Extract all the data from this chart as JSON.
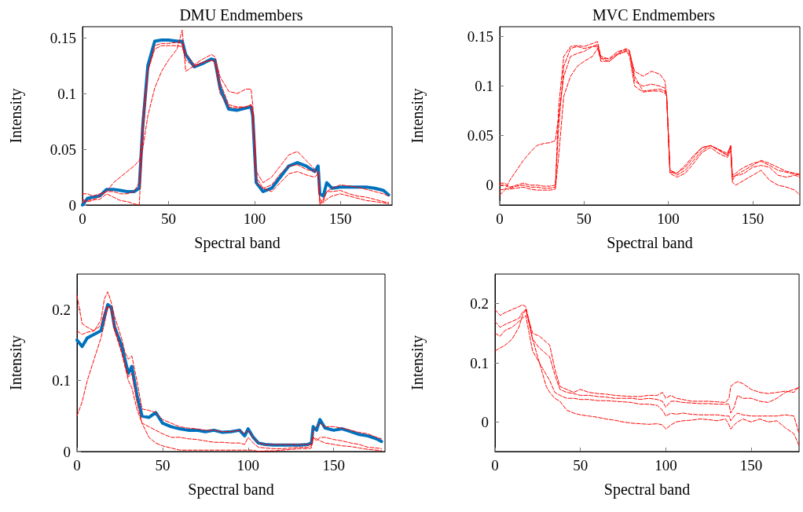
{
  "chart_data": [
    {
      "type": "line",
      "title": "DMU Endmembers",
      "xlabel": "Spectral band",
      "ylabel": "Intensity",
      "xlim": [
        0,
        180
      ],
      "xticks": [
        0,
        50,
        100,
        150
      ],
      "ylim": [
        0,
        0.16
      ],
      "yticks": [
        0,
        0.05,
        0.1,
        0.15
      ],
      "grid": false,
      "marker": "none",
      "x": [
        0,
        3,
        6,
        10,
        14,
        18,
        22,
        26,
        30,
        33,
        35,
        38,
        42,
        46,
        50,
        55,
        58,
        60,
        65,
        70,
        75,
        77,
        80,
        85,
        90,
        95,
        98,
        99,
        101,
        105,
        110,
        115,
        120,
        125,
        130,
        135,
        137,
        138,
        140,
        142,
        145,
        150,
        155,
        160,
        165,
        170,
        175,
        178
      ],
      "series": [
        {
          "color": "#ff0000",
          "line_style": "dashed",
          "values": [
            0.01,
            0.01,
            0.008,
            0.01,
            0.012,
            0.012,
            0.01,
            0.01,
            0.012,
            0.02,
            0.08,
            0.12,
            0.143,
            0.145,
            0.145,
            0.146,
            0.145,
            0.136,
            0.126,
            0.131,
            0.135,
            0.133,
            0.115,
            0.102,
            0.1,
            0.104,
            0.104,
            0.09,
            0.03,
            0.02,
            0.025,
            0.035,
            0.045,
            0.048,
            0.04,
            0.032,
            0.03,
            0.005,
            0.003,
            0.012,
            0.015,
            0.018,
            0.017,
            0.016,
            0.014,
            0.012,
            0.01,
            0.008
          ]
        },
        {
          "color": "#ff0000",
          "line_style": "dashed",
          "values": [
            0.005,
            0.003,
            0.004,
            0.008,
            0.012,
            0.02,
            0.025,
            0.03,
            0.035,
            0.04,
            0.05,
            0.08,
            0.105,
            0.12,
            0.13,
            0.14,
            0.157,
            0.12,
            0.125,
            0.128,
            0.13,
            0.128,
            0.11,
            0.09,
            0.088,
            0.088,
            0.09,
            0.08,
            0.025,
            0.015,
            0.012,
            0.02,
            0.028,
            0.03,
            0.027,
            0.025,
            0.028,
            0.003,
            0.002,
            0.005,
            0.008,
            0.01,
            0.008,
            0.006,
            0.004,
            0.003,
            0.002,
            0.001
          ]
        },
        {
          "color": "#ff0000",
          "line_style": "dashed",
          "values": [
            0.002,
            0.004,
            0.005,
            0.005,
            0.01,
            0.007,
            0.004,
            0.003,
            0.001,
            0,
            0.06,
            0.12,
            0.14,
            0.143,
            0.143,
            0.143,
            0.142,
            0.13,
            0.124,
            0.128,
            0.13,
            0.128,
            0.1,
            0.088,
            0.087,
            0.088,
            0.09,
            0.08,
            0.02,
            0.015,
            0.018,
            0.028,
            0.035,
            0.036,
            0.032,
            0.03,
            0.028,
            0,
            0.005,
            0.012,
            0.012,
            0.013,
            0.01,
            0.008,
            0.007,
            0.005,
            0.003,
            0.002
          ]
        },
        {
          "color": "#0072bd",
          "line_style": "solid",
          "values": [
            0,
            0.006,
            0.007,
            0.008,
            0.014,
            0.014,
            0.013,
            0.012,
            0.012,
            0.015,
            0.07,
            0.125,
            0.147,
            0.148,
            0.148,
            0.147,
            0.147,
            0.135,
            0.124,
            0.127,
            0.131,
            0.13,
            0.105,
            0.086,
            0.085,
            0.087,
            0.088,
            0.08,
            0.02,
            0.012,
            0.015,
            0.025,
            0.035,
            0.038,
            0.035,
            0.03,
            0.035,
            0.01,
            0.008,
            0.02,
            0.015,
            0.016,
            0.016,
            0.016,
            0.016,
            0.015,
            0.013,
            0.009
          ]
        }
      ]
    },
    {
      "type": "line",
      "title": "MVC Endmembers",
      "xlabel": "Spectral band",
      "ylabel": "Intensity",
      "xlim": [
        0,
        178
      ],
      "xticks": [
        0,
        50,
        100,
        150
      ],
      "ylim": [
        -0.02,
        0.16
      ],
      "yticks": [
        0,
        0.05,
        0.1,
        0.15
      ],
      "grid": false,
      "marker": "none",
      "x": [
        0,
        3,
        6,
        10,
        14,
        18,
        22,
        26,
        30,
        33,
        35,
        38,
        42,
        46,
        50,
        55,
        58,
        60,
        65,
        70,
        75,
        77,
        80,
        85,
        90,
        95,
        98,
        99,
        101,
        105,
        110,
        115,
        120,
        125,
        130,
        135,
        137,
        138,
        140,
        142,
        145,
        150,
        155,
        160,
        165,
        170,
        175,
        178
      ],
      "series": [
        {
          "color": "#ff0000",
          "line_style": "dashed",
          "values": [
            -0.01,
            -0.005,
            0.005,
            0.015,
            0.025,
            0.033,
            0.04,
            0.042,
            0.043,
            0.045,
            0.07,
            0.11,
            0.13,
            0.133,
            0.135,
            0.14,
            0.14,
            0.125,
            0.125,
            0.132,
            0.135,
            0.133,
            0.115,
            0.11,
            0.115,
            0.112,
            0.105,
            0.09,
            0.015,
            0.012,
            0.018,
            0.028,
            0.038,
            0.04,
            0.035,
            0.03,
            0.038,
            0.01,
            0.012,
            0.015,
            0.018,
            0.022,
            0.024,
            0.02,
            0.015,
            0.013,
            0.011,
            0.01
          ]
        },
        {
          "color": "#ff0000",
          "line_style": "dashed",
          "values": [
            0.002,
            0.002,
            -0.002,
            0,
            0.002,
            0,
            0,
            -0.001,
            -0.001,
            0,
            0.06,
            0.12,
            0.138,
            0.14,
            0.138,
            0.14,
            0.142,
            0.128,
            0.128,
            0.135,
            0.137,
            0.135,
            0.105,
            0.1,
            0.102,
            0.1,
            0.098,
            0.09,
            0.015,
            0.01,
            0.015,
            0.025,
            0.035,
            0.04,
            0.036,
            0.032,
            0.04,
            0.008,
            0.01,
            0.012,
            0.015,
            0.02,
            0.025,
            0.022,
            0.018,
            0.014,
            0.012,
            0.011
          ]
        },
        {
          "color": "#ff0000",
          "line_style": "dashed",
          "values": [
            -0.005,
            -0.004,
            -0.004,
            -0.003,
            -0.002,
            -0.004,
            -0.005,
            -0.005,
            -0.005,
            -0.004,
            0.03,
            0.09,
            0.11,
            0.12,
            0.125,
            0.13,
            0.138,
            0.128,
            0.125,
            0.132,
            0.136,
            0.13,
            0.1,
            0.094,
            0.095,
            0.095,
            0.093,
            0.09,
            0.012,
            0.008,
            0.012,
            0.022,
            0.033,
            0.038,
            0.032,
            0.028,
            0.035,
            0.003,
            0,
            0.002,
            0.005,
            0.01,
            0.015,
            0.005,
            0,
            -0.002,
            -0.005,
            -0.01
          ]
        },
        {
          "color": "#ff0000",
          "line_style": "dashed",
          "values": [
            0,
            0,
            -0.003,
            -0.001,
            0,
            -0.002,
            -0.002,
            -0.003,
            -0.003,
            -0.002,
            0.08,
            0.13,
            0.14,
            0.141,
            0.14,
            0.143,
            0.145,
            0.13,
            0.127,
            0.133,
            0.138,
            0.136,
            0.11,
            0.095,
            0.096,
            0.097,
            0.095,
            0.09,
            0.013,
            0.012,
            0.02,
            0.03,
            0.038,
            0.04,
            0.036,
            0.03,
            0.04,
            0.005,
            0.01,
            0.01,
            0.012,
            0.018,
            0.02,
            0.018,
            0.01,
            0.008,
            0.01,
            0.008
          ]
        }
      ]
    },
    {
      "type": "line",
      "xlabel": "Spectral band",
      "ylabel": "Intensity",
      "xlim": [
        0,
        180
      ],
      "xticks": [
        0,
        50,
        100,
        150
      ],
      "ylim": [
        0,
        0.25
      ],
      "yticks": [
        0,
        0.1,
        0.2
      ],
      "grid": false,
      "marker": "none",
      "x": [
        0,
        3,
        6,
        10,
        14,
        16,
        18,
        20,
        22,
        26,
        28,
        30,
        32,
        35,
        38,
        42,
        46,
        50,
        55,
        60,
        65,
        70,
        75,
        80,
        85,
        90,
        95,
        98,
        100,
        103,
        106,
        110,
        115,
        120,
        125,
        130,
        135,
        137,
        138,
        140,
        142,
        145,
        150,
        155,
        160,
        165,
        170,
        175,
        178
      ],
      "series": [
        {
          "color": "#ff0000",
          "line_style": "dashed",
          "values": [
            0.22,
            0.18,
            0.175,
            0.17,
            0.185,
            0.215,
            0.225,
            0.21,
            0.19,
            0.16,
            0.14,
            0.13,
            0.135,
            0.1,
            0.06,
            0.058,
            0.055,
            0.045,
            0.04,
            0.035,
            0.033,
            0.032,
            0.03,
            0.03,
            0.028,
            0.028,
            0.03,
            0.025,
            0.03,
            0.02,
            0.012,
            0.01,
            0.01,
            0.01,
            0.01,
            0.01,
            0.01,
            0.01,
            0.03,
            0.035,
            0.04,
            0.035,
            0.035,
            0.033,
            0.03,
            0.027,
            0.025,
            0.02,
            0.018
          ]
        },
        {
          "color": "#ff0000",
          "line_style": "dashed",
          "values": [
            0.05,
            0.07,
            0.1,
            0.13,
            0.16,
            0.18,
            0.205,
            0.2,
            0.175,
            0.14,
            0.12,
            0.1,
            0.09,
            0.06,
            0.04,
            0.035,
            0.03,
            0.025,
            0.02,
            0.02,
            0.018,
            0.017,
            0.015,
            0.013,
            0.013,
            0.012,
            0.012,
            0.01,
            0.02,
            0.012,
            0.006,
            0.005,
            0.004,
            0.004,
            0.005,
            0.006,
            0.006,
            0.008,
            0.02,
            0.015,
            0.02,
            0.02,
            0.017,
            0.015,
            0.012,
            0.01,
            0.006,
            0.005,
            0.004
          ]
        },
        {
          "color": "#ff0000",
          "line_style": "dashed",
          "values": [
            0.17,
            0.165,
            0.168,
            0.17,
            0.178,
            0.195,
            0.205,
            0.2,
            0.17,
            0.14,
            0.125,
            0.105,
            0.11,
            0.07,
            0.04,
            0.02,
            0.012,
            0.008,
            0.005,
            0.002,
            0.002,
            0.002,
            0.002,
            0.002,
            0.002,
            0.002,
            0.002,
            0.002,
            0.002,
            0.002,
            0,
            0.001,
            0.001,
            0.002,
            0.003,
            0.004,
            0.004,
            0.005,
            0.02,
            0.018,
            0.015,
            0.012,
            0.01,
            0.008,
            0.007,
            0.005,
            0.003,
            0.002,
            0.001
          ]
        },
        {
          "color": "#0072bd",
          "line_style": "solid",
          "values": [
            0.157,
            0.148,
            0.16,
            0.165,
            0.17,
            0.19,
            0.207,
            0.203,
            0.175,
            0.15,
            0.13,
            0.11,
            0.12,
            0.08,
            0.05,
            0.048,
            0.055,
            0.04,
            0.035,
            0.032,
            0.03,
            0.03,
            0.028,
            0.03,
            0.027,
            0.028,
            0.03,
            0.022,
            0.032,
            0.02,
            0.012,
            0.01,
            0.009,
            0.009,
            0.009,
            0.009,
            0.01,
            0.012,
            0.035,
            0.03,
            0.045,
            0.033,
            0.03,
            0.032,
            0.028,
            0.024,
            0.022,
            0.018,
            0.014
          ]
        }
      ]
    },
    {
      "type": "line",
      "xlabel": "Spectral band",
      "ylabel": "Intensity",
      "xlim": [
        0,
        178
      ],
      "xticks": [
        0,
        50,
        100,
        150
      ],
      "ylim": [
        -0.05,
        0.25
      ],
      "yticks": [
        0,
        0.1,
        0.2
      ],
      "grid": false,
      "marker": "none",
      "x": [
        0,
        3,
        6,
        10,
        14,
        16,
        18,
        20,
        22,
        26,
        28,
        30,
        32,
        35,
        38,
        42,
        46,
        50,
        55,
        60,
        65,
        70,
        75,
        80,
        85,
        90,
        95,
        98,
        100,
        103,
        106,
        110,
        115,
        120,
        125,
        130,
        135,
        137,
        138,
        140,
        142,
        145,
        150,
        155,
        160,
        165,
        170,
        175,
        178
      ],
      "series": [
        {
          "color": "#ff0000",
          "line_style": "dashed",
          "values": [
            0.19,
            0.18,
            0.185,
            0.19,
            0.195,
            0.198,
            0.195,
            0.17,
            0.15,
            0.145,
            0.14,
            0.135,
            0.13,
            0.09,
            0.06,
            0.055,
            0.05,
            0.055,
            0.05,
            0.048,
            0.047,
            0.045,
            0.044,
            0.043,
            0.043,
            0.045,
            0.045,
            0.05,
            0.04,
            0.045,
            0.04,
            0.038,
            0.035,
            0.035,
            0.035,
            0.034,
            0.033,
            0.04,
            0.06,
            0.065,
            0.068,
            0.065,
            0.055,
            0.05,
            0.048,
            0.05,
            0.052,
            0.05,
            0.06
          ]
        },
        {
          "color": "#ff0000",
          "line_style": "dashed",
          "values": [
            0.17,
            0.16,
            0.165,
            0.17,
            0.175,
            0.185,
            0.19,
            0.165,
            0.14,
            0.125,
            0.12,
            0.115,
            0.11,
            0.08,
            0.055,
            0.05,
            0.048,
            0.045,
            0.045,
            0.043,
            0.042,
            0.04,
            0.04,
            0.04,
            0.038,
            0.04,
            0.038,
            0.035,
            0.025,
            0.035,
            0.035,
            0.033,
            0.032,
            0.031,
            0.031,
            0.03,
            0.03,
            0.03,
            0.015,
            0.025,
            0.045,
            0.04,
            0.04,
            0.035,
            0.033,
            0.04,
            0.05,
            0.055,
            0.058
          ]
        },
        {
          "color": "#ff0000",
          "line_style": "dashed",
          "values": [
            0.15,
            0.145,
            0.155,
            0.16,
            0.17,
            0.175,
            0.18,
            0.15,
            0.12,
            0.1,
            0.09,
            0.08,
            0.07,
            0.05,
            0.045,
            0.04,
            0.04,
            0.038,
            0.038,
            0.036,
            0.036,
            0.035,
            0.034,
            0.033,
            0.03,
            0.03,
            0.028,
            0.02,
            0.01,
            0.015,
            0.013,
            0.015,
            0.013,
            0.012,
            0.012,
            0.012,
            0.01,
            0.01,
            0.002,
            0.01,
            0.015,
            0.012,
            0.01,
            0.01,
            0.01,
            0.01,
            0.012,
            0.01,
            -0.02
          ]
        },
        {
          "color": "#ff0000",
          "line_style": "dashed",
          "values": [
            0.12,
            0.125,
            0.13,
            0.14,
            0.16,
            0.18,
            0.19,
            0.17,
            0.14,
            0.1,
            0.08,
            0.06,
            0.05,
            0.04,
            0.035,
            0.02,
            0.015,
            0.012,
            0.01,
            0.008,
            0.005,
            0.003,
            0,
            -0.002,
            -0.003,
            -0.004,
            -0.003,
            -0.005,
            -0.012,
            -0.005,
            0,
            0.002,
            0.003,
            0.005,
            0.004,
            0.002,
            0.005,
            -0.005,
            -0.012,
            -0.005,
            0,
            0.005,
            0,
            0.005,
            0,
            0.002,
            -0.01,
            -0.02,
            -0.04
          ]
        }
      ]
    }
  ]
}
